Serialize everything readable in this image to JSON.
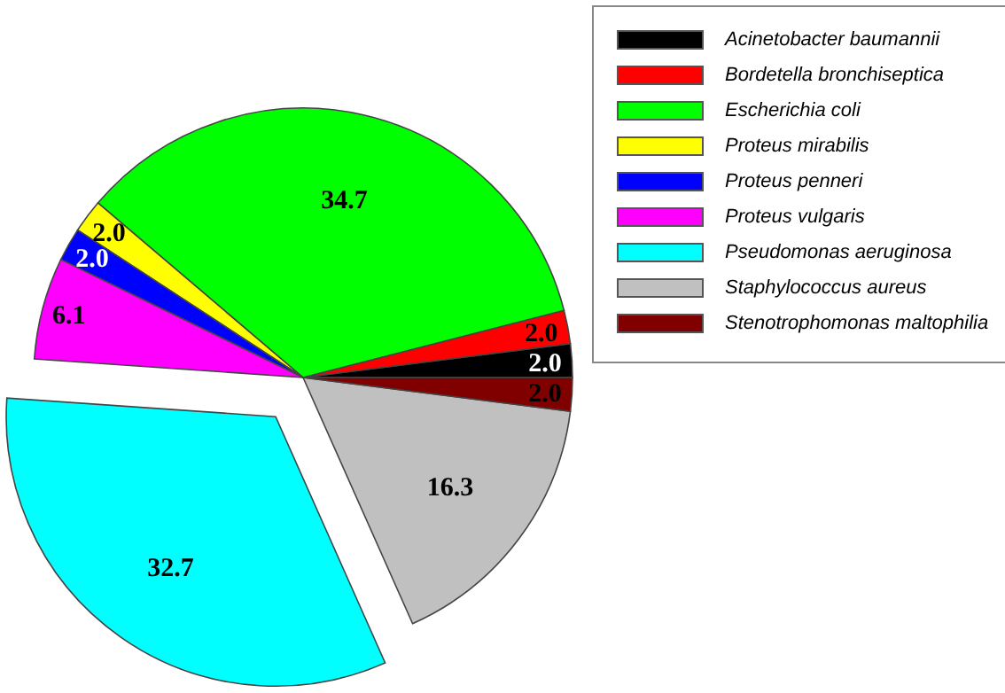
{
  "chart_data": {
    "type": "pie",
    "categories": [
      "Acinetobacter baumannii",
      "Bordetella bronchiseptica",
      "Escherichia coli",
      "Proteus mirabilis",
      "Proteus penneri",
      "Proteus vulgaris",
      "Pseudomonas aeruginosa",
      "Staphylococcus aureus",
      "Stenotrophomonas maltophilia"
    ],
    "values": [
      2.0,
      2.0,
      34.7,
      2.0,
      2.0,
      6.1,
      32.7,
      16.3,
      2.0
    ],
    "colors": [
      "#000000",
      "#ff0000",
      "#00ff00",
      "#ffff00",
      "#0000ff",
      "#ff00ff",
      "#00ffff",
      "#c0c0c0",
      "#800000"
    ],
    "legend": "top right",
    "value_labels": [
      "2.0",
      "2.0",
      "34.7",
      "2.0",
      "2.0",
      "6.1",
      "32.7",
      "16.3",
      "2.0"
    ]
  }
}
